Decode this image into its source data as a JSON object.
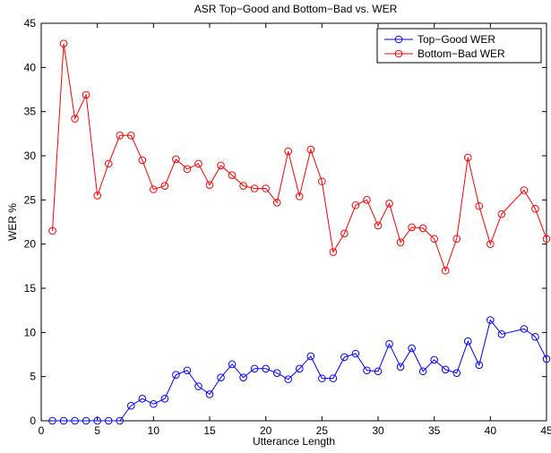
{
  "chart_data": {
    "type": "line",
    "title": "ASR Top−Good and Bottom−Bad vs. WER",
    "xlabel": "Utterance Length",
    "ylabel": "WER %",
    "xlim": [
      0,
      45
    ],
    "ylim": [
      0,
      45
    ],
    "xticks": [
      0,
      5,
      10,
      15,
      20,
      25,
      30,
      35,
      40,
      45
    ],
    "yticks": [
      0,
      5,
      10,
      15,
      20,
      25,
      30,
      35,
      40,
      45
    ],
    "grid": false,
    "legend_position": "top-right",
    "series": [
      {
        "name": "Top−Good WER",
        "color": "#0000ff",
        "marker": "circle",
        "x": [
          1,
          2,
          3,
          4,
          5,
          6,
          7,
          8,
          9,
          10,
          11,
          12,
          13,
          14,
          15,
          16,
          17,
          18,
          19,
          20,
          21,
          22,
          23,
          24,
          25,
          26,
          27,
          28,
          29,
          30,
          31,
          32,
          33,
          34,
          35,
          36,
          37,
          38,
          39,
          40,
          41,
          43,
          44,
          45
        ],
        "y": [
          0,
          0,
          0,
          0,
          0,
          0,
          0,
          1.7,
          2.5,
          1.9,
          2.5,
          5.2,
          5.7,
          3.9,
          3.0,
          4.9,
          6.4,
          4.9,
          5.9,
          5.9,
          5.4,
          4.7,
          5.9,
          7.3,
          4.8,
          4.8,
          7.2,
          7.6,
          5.7,
          5.6,
          8.7,
          6.1,
          8.2,
          5.6,
          6.9,
          5.8,
          5.4,
          9.0,
          6.3,
          11.4,
          9.8,
          10.4,
          9.5,
          7.0
        ]
      },
      {
        "name": "Bottom−Bad WER",
        "color": "#ff0000",
        "marker": "circle",
        "x": [
          1,
          2,
          3,
          4,
          5,
          6,
          7,
          8,
          9,
          10,
          11,
          12,
          13,
          14,
          15,
          16,
          17,
          18,
          19,
          20,
          21,
          22,
          23,
          24,
          25,
          26,
          27,
          28,
          29,
          30,
          31,
          32,
          33,
          34,
          35,
          36,
          37,
          38,
          39,
          40,
          41,
          43,
          44,
          45
        ],
        "y": [
          21.5,
          42.7,
          34.2,
          36.9,
          25.5,
          29.1,
          32.3,
          32.3,
          29.5,
          26.2,
          26.6,
          29.6,
          28.5,
          29.1,
          26.7,
          28.9,
          27.8,
          26.6,
          26.3,
          26.3,
          24.7,
          30.5,
          25.4,
          30.7,
          27.1,
          19.1,
          21.2,
          24.4,
          25.0,
          22.1,
          24.6,
          20.2,
          21.9,
          21.8,
          20.6,
          17.0,
          20.6,
          29.8,
          24.3,
          20.0,
          23.4,
          26.1,
          24.0,
          20.6
        ]
      }
    ]
  }
}
